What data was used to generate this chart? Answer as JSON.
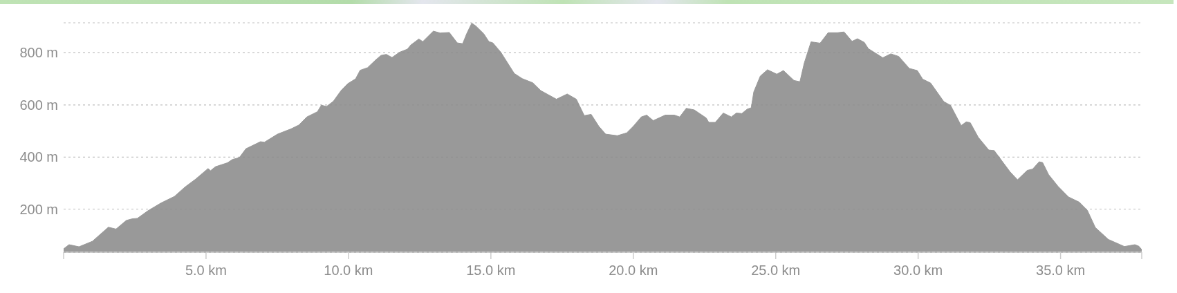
{
  "chart_data": {
    "type": "area",
    "color": "#999999",
    "x": [
      0,
      0.19,
      0.54,
      1.01,
      1.57,
      1.84,
      2.2,
      2.4,
      2.59,
      2.96,
      3.42,
      3.89,
      4.26,
      4.63,
      5.07,
      5.16,
      5.33,
      5.75,
      5.93,
      6.17,
      6.4,
      6.91,
      7.05,
      7.51,
      7.98,
      8.26,
      8.54,
      8.91,
      9.05,
      9.23,
      9.47,
      9.74,
      9.98,
      10.25,
      10.41,
      10.67,
      10.95,
      11.14,
      11.33,
      11.53,
      11.79,
      12.07,
      12.19,
      12.47,
      12.61,
      12.98,
      13.22,
      13.54,
      13.82,
      14.01,
      14.15,
      14.33,
      14.47,
      14.75,
      14.93,
      15.07,
      15.35,
      15.82,
      16.1,
      16.47,
      16.75,
      17.3,
      17.68,
      18,
      18.28,
      18.52,
      18.79,
      19.03,
      19.44,
      19.77,
      20,
      20.28,
      20.47,
      20.7,
      21.12,
      21.44,
      21.63,
      21.86,
      22.14,
      22.56,
      22.65,
      22.88,
      23.16,
      23.44,
      23.62,
      23.81,
      24,
      24.14,
      24.23,
      24.46,
      24.71,
      25.04,
      25.27,
      25.64,
      25.85,
      26,
      26.24,
      26.56,
      26.84,
      27.17,
      27.4,
      27.68,
      27.87,
      28.11,
      28.25,
      28.76,
      29.04,
      29.32,
      29.69,
      29.97,
      30.16,
      30.44,
      30.9,
      31.14,
      31.51,
      31.69,
      31.83,
      32.11,
      32.48,
      32.67,
      33.23,
      33.49,
      33.83,
      34.02,
      34.25,
      34.37,
      34.58,
      34.91,
      35.28,
      35.66,
      35.94,
      36.22,
      36.68,
      37.24,
      37.61,
      37.75,
      37.85
    ],
    "values": [
      48,
      64,
      56,
      77,
      131,
      124,
      157,
      163,
      165,
      194,
      224,
      249,
      285,
      315,
      356,
      348,
      363,
      378,
      391,
      398,
      432,
      459,
      457,
      488,
      508,
      523,
      554,
      574,
      599,
      594,
      614,
      655,
      682,
      700,
      733,
      743,
      772,
      790,
      794,
      782,
      802,
      814,
      830,
      853,
      843,
      883,
      876,
      878,
      838,
      835,
      873,
      914,
      903,
      873,
      843,
      838,
      802,
      721,
      701,
      685,
      655,
      622,
      642,
      622,
      559,
      564,
      518,
      488,
      482,
      493,
      518,
      554,
      561,
      540,
      561,
      561,
      554,
      587,
      581,
      550,
      533,
      533,
      569,
      554,
      569,
      567,
      584,
      589,
      650,
      711,
      735,
      718,
      732,
      694,
      689,
      760,
      842,
      837,
      877,
      877,
      880,
      844,
      854,
      840,
      816,
      781,
      796,
      786,
      740,
      732,
      699,
      684,
      613,
      598,
      521,
      535,
      532,
      476,
      427,
      425,
      343,
      313,
      349,
      354,
      382,
      379,
      333,
      288,
      247,
      227,
      196,
      130,
      84,
      57,
      64,
      58,
      45
    ],
    "xlim": [
      0,
      37.85
    ],
    "xticks": [
      {
        "value": 0,
        "label": null
      },
      {
        "value": 5,
        "label": "5.0 km"
      },
      {
        "value": 10,
        "label": "10.0 km"
      },
      {
        "value": 15,
        "label": "15.0 km"
      },
      {
        "value": 20,
        "label": "20.0 km"
      },
      {
        "value": 25,
        "label": "25.0 km"
      },
      {
        "value": 30,
        "label": "30.0 km"
      },
      {
        "value": 35,
        "label": "35.0 km"
      },
      {
        "value": 37.85,
        "label": null
      }
    ],
    "ylim": [
      35,
      915
    ],
    "yticks": [
      {
        "value": 200,
        "label": "200 m"
      },
      {
        "value": 400,
        "label": "400 m"
      },
      {
        "value": 600,
        "label": "600 m"
      },
      {
        "value": 800,
        "label": "800 m"
      }
    ],
    "grid": "y"
  }
}
